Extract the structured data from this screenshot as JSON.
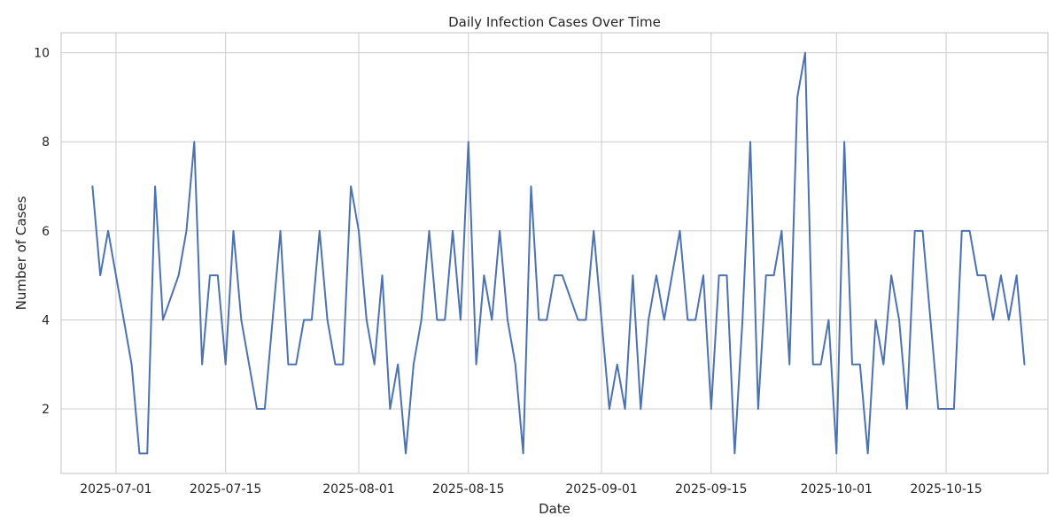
{
  "chart_data": {
    "type": "line",
    "title": "Daily Infection Cases Over Time",
    "xlabel": "Date",
    "ylabel": "Number of Cases",
    "x_start": "2025-06-28",
    "x_ticks": [
      "2025-07-01",
      "2025-07-15",
      "2025-08-01",
      "2025-08-15",
      "2025-09-01",
      "2025-09-15",
      "2025-10-01",
      "2025-10-15"
    ],
    "y_ticks": [
      2,
      4,
      6,
      8,
      10
    ],
    "xlim": [
      "2025-06-24",
      "2025-10-28"
    ],
    "ylim": [
      0.55,
      10.45
    ],
    "grid": true,
    "series": [
      {
        "color": "#4c72b0",
        "values": [
          7,
          5,
          6,
          5,
          4,
          3,
          1,
          1,
          7,
          4,
          4.5,
          5,
          6,
          8,
          3,
          5,
          5,
          3,
          6,
          4,
          3,
          2,
          2,
          4,
          6,
          3,
          3,
          4,
          4,
          6,
          4,
          3,
          3,
          7,
          6,
          4,
          3,
          5,
          2,
          3,
          1,
          3,
          4,
          6,
          4,
          4,
          6,
          4,
          8,
          3,
          5,
          4,
          6,
          4,
          3,
          1,
          7,
          4,
          4,
          5,
          5,
          4.5,
          4,
          4,
          6,
          4,
          2,
          3,
          2,
          5,
          2,
          4,
          5,
          4,
          5,
          6,
          4,
          4,
          5,
          2,
          5,
          5,
          1,
          4,
          8,
          2,
          5,
          5,
          6,
          3,
          9,
          10,
          3,
          3,
          4,
          1,
          8,
          3,
          3,
          1,
          4,
          3,
          5,
          4,
          2,
          6,
          6,
          4,
          2,
          2,
          2,
          6,
          6,
          5,
          5,
          4,
          5,
          4,
          5,
          3
        ]
      }
    ]
  }
}
